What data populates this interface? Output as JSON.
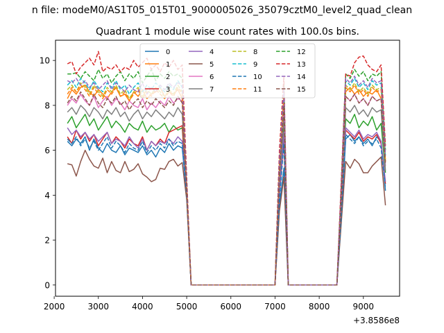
{
  "chart_data": {
    "type": "line",
    "suptitle": "n file: modeM0/AS1T05_015T01_9000005026_35079cztM0_level2_quad_clean",
    "title": "Quadrant 1 module wise count rates with 100.0s bins.",
    "xlabel": "",
    "ylabel": "",
    "x_offset_label": "+3.8586e8",
    "xlim": [
      2030,
      9820
    ],
    "ylim": [
      -0.5,
      10.9
    ],
    "xticks": [
      2000,
      3000,
      4000,
      5000,
      6000,
      7000,
      8000,
      9000
    ],
    "yticks": [
      0,
      2,
      4,
      6,
      8,
      10
    ],
    "x": [
      2300,
      2400,
      2500,
      2600,
      2700,
      2800,
      2900,
      3000,
      3100,
      3200,
      3300,
      3400,
      3500,
      3600,
      3700,
      3800,
      3900,
      4000,
      4100,
      4200,
      4300,
      4400,
      4500,
      4600,
      4700,
      4800,
      4900,
      5000,
      5100,
      5200,
      5300,
      5400,
      5500,
      5600,
      5700,
      5800,
      5900,
      6000,
      6100,
      6200,
      6300,
      6400,
      6500,
      6600,
      6700,
      6800,
      6900,
      7000,
      7100,
      7200,
      7300,
      7400,
      7500,
      7600,
      7700,
      7800,
      7900,
      8000,
      8100,
      8200,
      8300,
      8400,
      8500,
      8600,
      8700,
      8800,
      8900,
      9000,
      9100,
      9200,
      9300,
      9400,
      9500
    ],
    "series": [
      {
        "name": "0",
        "color": "#1f77b4",
        "dash": "solid",
        "values": [
          6.4,
          6.2,
          6.5,
          6.3,
          6.6,
          6.0,
          6.5,
          6.1,
          5.9,
          6.3,
          6.0,
          5.9,
          6.2,
          5.8,
          6.1,
          6.0,
          5.9,
          6.2,
          5.8,
          6.0,
          5.7,
          6.1,
          5.9,
          6.3,
          6.0,
          6.2,
          6.1,
          4.0,
          0,
          0,
          0,
          0,
          0,
          0,
          0,
          0,
          0,
          0,
          0,
          0,
          0,
          0,
          0,
          0,
          0,
          0,
          0,
          0,
          3.5,
          5.2,
          0,
          0,
          0,
          0,
          0,
          0,
          0,
          0,
          0,
          0,
          0,
          0,
          3.0,
          6.5,
          6.7,
          6.4,
          6.6,
          6.3,
          6.5,
          6.2,
          6.6,
          6.4,
          4.2
        ]
      },
      {
        "name": "1",
        "color": "#ff7f0e",
        "dash": "solid",
        "values": [
          8.3,
          8.7,
          8.5,
          8.8,
          8.9,
          8.6,
          8.4,
          8.7,
          8.5,
          8.3,
          8.6,
          8.8,
          8.4,
          8.5,
          8.2,
          8.6,
          8.4,
          8.7,
          8.3,
          8.5,
          8.6,
          8.8,
          8.4,
          8.6,
          8.5,
          8.7,
          8.3,
          4.3,
          0,
          0,
          0,
          0,
          0,
          0,
          0,
          0,
          0,
          0,
          0,
          0,
          0,
          0,
          0,
          0,
          0,
          0,
          0,
          0,
          5.0,
          8.0,
          0,
          0,
          0,
          0,
          0,
          0,
          0,
          0,
          0,
          0,
          0,
          0,
          4.0,
          8.6,
          8.8,
          8.5,
          8.7,
          8.4,
          8.6,
          8.5,
          8.7,
          8.3,
          5.5
        ]
      },
      {
        "name": "2",
        "color": "#2ca02c",
        "dash": "solid",
        "values": [
          7.2,
          7.5,
          7.0,
          7.3,
          7.6,
          7.1,
          7.4,
          6.9,
          7.2,
          7.5,
          7.0,
          7.3,
          7.1,
          6.8,
          7.2,
          7.0,
          6.9,
          7.3,
          6.8,
          7.1,
          6.9,
          7.0,
          7.2,
          6.8,
          7.1,
          6.9,
          7.0,
          4.1,
          0,
          0,
          0,
          0,
          0,
          0,
          0,
          0,
          0,
          0,
          0,
          0,
          0,
          0,
          0,
          0,
          0,
          0,
          0,
          0,
          4.5,
          7.0,
          0,
          0,
          0,
          0,
          0,
          0,
          0,
          0,
          0,
          0,
          0,
          0,
          3.5,
          7.4,
          7.2,
          7.6,
          7.0,
          7.3,
          7.1,
          7.5,
          6.9,
          7.2,
          5.0
        ]
      },
      {
        "name": "3",
        "color": "#d62728",
        "dash": "solid",
        "values": [
          6.6,
          6.3,
          6.9,
          6.5,
          6.8,
          6.4,
          6.7,
          6.2,
          6.5,
          6.8,
          6.3,
          6.6,
          6.4,
          6.1,
          6.5,
          6.3,
          6.2,
          6.6,
          6.0,
          6.4,
          6.2,
          6.5,
          6.3,
          6.8,
          6.9,
          7.0,
          7.1,
          4.2,
          0,
          0,
          0,
          0,
          0,
          0,
          0,
          0,
          0,
          0,
          0,
          0,
          0,
          0,
          0,
          0,
          0,
          0,
          0,
          0,
          4.0,
          6.5,
          0,
          0,
          0,
          0,
          0,
          0,
          0,
          0,
          0,
          0,
          0,
          0,
          3.2,
          6.9,
          6.7,
          6.5,
          6.8,
          6.4,
          6.6,
          6.5,
          6.7,
          6.3,
          4.5
        ]
      },
      {
        "name": "4",
        "color": "#9467bd",
        "dash": "solid",
        "values": [
          7.0,
          6.7,
          6.9,
          6.6,
          6.8,
          6.5,
          6.7,
          6.4,
          6.6,
          6.8,
          6.3,
          6.5,
          6.4,
          6.2,
          6.6,
          6.3,
          6.1,
          6.5,
          6.0,
          6.4,
          6.2,
          6.4,
          6.3,
          6.5,
          6.3,
          6.6,
          6.4,
          4.1,
          0,
          0,
          0,
          0,
          0,
          0,
          0,
          0,
          0,
          0,
          0,
          0,
          0,
          0,
          0,
          0,
          0,
          0,
          0,
          0,
          4.2,
          6.8,
          0,
          0,
          0,
          0,
          0,
          0,
          0,
          0,
          0,
          0,
          0,
          0,
          3.3,
          7.0,
          6.8,
          6.6,
          6.9,
          6.5,
          6.7,
          6.6,
          6.8,
          6.4,
          4.6
        ]
      },
      {
        "name": "5",
        "color": "#8c564b",
        "dash": "solid",
        "values": [
          5.4,
          5.35,
          4.85,
          5.5,
          6.0,
          5.6,
          5.3,
          5.2,
          5.65,
          5.0,
          5.5,
          5.1,
          5.0,
          5.5,
          5.05,
          5.15,
          5.4,
          4.95,
          4.8,
          4.6,
          4.7,
          5.2,
          5.15,
          5.5,
          5.6,
          5.3,
          5.45,
          3.8,
          0,
          0,
          0,
          0,
          0,
          0,
          0,
          0,
          0,
          0,
          0,
          0,
          0,
          0,
          0,
          0,
          0,
          0,
          0,
          0,
          3.3,
          4.8,
          0,
          0,
          0,
          0,
          0,
          0,
          0,
          0,
          0,
          0,
          0,
          0,
          2.8,
          5.5,
          5.2,
          5.6,
          5.4,
          5.0,
          5.0,
          5.3,
          5.5,
          5.7,
          3.55
        ]
      },
      {
        "name": "6",
        "color": "#e377c2",
        "dash": "solid",
        "values": [
          8.0,
          8.3,
          8.1,
          8.5,
          8.2,
          8.0,
          8.4,
          7.9,
          8.2,
          8.4,
          8.0,
          8.3,
          8.1,
          7.8,
          8.2,
          8.0,
          7.9,
          8.3,
          7.8,
          8.1,
          7.9,
          8.2,
          8.0,
          8.4,
          8.1,
          8.3,
          8.2,
          4.3,
          0,
          0,
          0,
          0,
          0,
          0,
          0,
          0,
          0,
          0,
          0,
          0,
          0,
          0,
          0,
          0,
          0,
          0,
          0,
          0,
          5.0,
          7.8,
          0,
          0,
          0,
          0,
          0,
          0,
          0,
          0,
          0,
          0,
          0,
          0,
          3.8,
          8.4,
          8.2,
          8.5,
          8.1,
          8.3,
          8.0,
          8.4,
          8.2,
          8.3,
          5.3
        ]
      },
      {
        "name": "7",
        "color": "#7f7f7f",
        "dash": "solid",
        "values": [
          7.7,
          7.9,
          7.6,
          8.0,
          7.8,
          7.5,
          7.9,
          7.7,
          7.4,
          7.8,
          7.6,
          7.9,
          7.5,
          7.7,
          7.3,
          7.6,
          7.8,
          7.4,
          7.7,
          7.5,
          7.8,
          7.6,
          7.4,
          7.7,
          7.5,
          7.9,
          7.6,
          4.2,
          0,
          0,
          0,
          0,
          0,
          0,
          0,
          0,
          0,
          0,
          0,
          0,
          0,
          0,
          0,
          0,
          0,
          0,
          0,
          0,
          4.8,
          7.5,
          0,
          0,
          0,
          0,
          0,
          0,
          0,
          0,
          0,
          0,
          0,
          0,
          3.6,
          7.9,
          7.7,
          8.0,
          7.6,
          7.8,
          7.5,
          7.9,
          7.7,
          7.8,
          5.1
        ]
      },
      {
        "name": "8",
        "color": "#bcbd22",
        "dash": "dash",
        "values": [
          8.7,
          8.9,
          8.6,
          9.0,
          8.8,
          8.5,
          8.9,
          8.6,
          8.4,
          8.8,
          8.6,
          8.9,
          8.5,
          8.7,
          8.3,
          8.6,
          8.8,
          8.4,
          8.7,
          8.5,
          8.8,
          8.6,
          8.4,
          8.7,
          8.5,
          8.9,
          8.6,
          4.4,
          0,
          0,
          0,
          0,
          0,
          0,
          0,
          0,
          0,
          0,
          0,
          0,
          0,
          0,
          0,
          0,
          0,
          0,
          0,
          0,
          5.3,
          8.5,
          0,
          0,
          0,
          0,
          0,
          0,
          0,
          0,
          0,
          0,
          0,
          0,
          4.1,
          8.9,
          8.7,
          9.0,
          8.6,
          8.8,
          8.5,
          8.9,
          8.7,
          8.8,
          5.6
        ]
      },
      {
        "name": "9",
        "color": "#17becf",
        "dash": "dash",
        "values": [
          8.9,
          9.1,
          8.8,
          9.2,
          9.0,
          8.7,
          9.1,
          8.8,
          8.6,
          9.0,
          8.8,
          9.1,
          8.7,
          8.9,
          8.5,
          8.8,
          9.0,
          8.6,
          8.9,
          8.7,
          9.0,
          8.8,
          8.6,
          8.9,
          8.7,
          9.1,
          8.8,
          4.4,
          0,
          0,
          0,
          0,
          0,
          0,
          0,
          0,
          0,
          0,
          0,
          0,
          0,
          0,
          0,
          0,
          0,
          0,
          0,
          0,
          5.4,
          8.7,
          0,
          0,
          0,
          0,
          0,
          0,
          0,
          0,
          0,
          0,
          0,
          0,
          4.2,
          9.1,
          8.9,
          9.2,
          8.8,
          9.0,
          8.7,
          9.1,
          8.9,
          9.0,
          5.7
        ]
      },
      {
        "name": "10",
        "color": "#1f77b4",
        "dash": "dash",
        "values": [
          6.5,
          6.3,
          6.6,
          6.2,
          6.5,
          6.1,
          6.4,
          6.0,
          6.3,
          6.6,
          6.1,
          6.4,
          6.2,
          5.9,
          6.3,
          6.1,
          6.0,
          6.4,
          5.9,
          6.2,
          6.0,
          6.3,
          6.1,
          6.5,
          6.2,
          6.4,
          6.3,
          4.0,
          0,
          0,
          0,
          0,
          0,
          0,
          0,
          0,
          0,
          0,
          0,
          0,
          0,
          0,
          0,
          0,
          0,
          0,
          0,
          0,
          3.8,
          6.3,
          0,
          0,
          0,
          0,
          0,
          0,
          0,
          0,
          0,
          0,
          0,
          0,
          3.1,
          6.7,
          6.5,
          6.3,
          6.6,
          6.2,
          6.4,
          6.3,
          6.5,
          6.1,
          4.3
        ]
      },
      {
        "name": "11",
        "color": "#ff7f0e",
        "dash": "dash",
        "values": [
          8.5,
          8.8,
          8.6,
          8.9,
          8.7,
          8.4,
          8.8,
          8.5,
          8.3,
          8.7,
          8.5,
          8.8,
          8.4,
          8.6,
          8.2,
          8.5,
          8.7,
          8.3,
          8.6,
          8.4,
          8.7,
          8.5,
          8.3,
          8.6,
          8.4,
          8.8,
          8.5,
          4.3,
          0,
          0,
          0,
          0,
          0,
          0,
          0,
          0,
          0,
          0,
          0,
          0,
          0,
          0,
          0,
          0,
          0,
          0,
          0,
          0,
          5.2,
          8.4,
          0,
          0,
          0,
          0,
          0,
          0,
          0,
          0,
          0,
          0,
          0,
          0,
          4.0,
          8.8,
          8.6,
          8.9,
          8.5,
          8.7,
          8.4,
          8.8,
          8.6,
          8.7,
          5.5
        ]
      },
      {
        "name": "12",
        "color": "#2ca02c",
        "dash": "dash",
        "values": [
          9.4,
          9.4,
          9.45,
          9.2,
          9.5,
          9.3,
          9.1,
          9.6,
          9.2,
          9.4,
          9.0,
          9.3,
          9.5,
          9.1,
          9.4,
          9.2,
          9.5,
          9.0,
          9.3,
          9.6,
          9.1,
          9.4,
          9.2,
          9.5,
          9.3,
          9.4,
          9.2,
          4.6,
          0,
          0,
          0,
          0,
          0,
          0,
          0,
          0,
          0,
          0,
          0,
          0,
          0,
          0,
          0,
          0,
          0,
          0,
          0,
          0,
          5.8,
          9.0,
          0,
          0,
          0,
          0,
          0,
          0,
          0,
          0,
          0,
          0,
          0,
          0,
          4.5,
          9.4,
          9.2,
          9.6,
          9.3,
          9.5,
          9.1,
          9.4,
          9.3,
          9.5,
          6.0
        ]
      },
      {
        "name": "13",
        "color": "#d62728",
        "dash": "dash",
        "values": [
          9.85,
          9.95,
          9.4,
          9.7,
          9.9,
          10.1,
          9.8,
          10.4,
          9.5,
          9.7,
          9.6,
          9.8,
          9.5,
          9.7,
          9.6,
          10.0,
          9.7,
          9.9,
          10.1,
          9.6,
          9.8,
          9.5,
          9.9,
          9.7,
          10.0,
          9.6,
          9.8,
          4.8,
          0,
          0,
          0,
          0,
          0,
          0,
          0,
          0,
          0,
          0,
          0,
          0,
          0,
          0,
          0,
          0,
          0,
          0,
          0,
          0,
          6.0,
          9.3,
          0,
          0,
          0,
          0,
          0,
          0,
          0,
          0,
          0,
          0,
          0,
          0,
          4.7,
          9.4,
          9.3,
          9.9,
          10.15,
          10.2,
          9.8,
          9.6,
          9.5,
          9.8,
          6.2
        ]
      },
      {
        "name": "14",
        "color": "#9467bd",
        "dash": "dash",
        "values": [
          9.1,
          9.0,
          9.2,
          8.9,
          9.1,
          8.8,
          9.0,
          8.7,
          8.9,
          9.1,
          8.7,
          9.0,
          8.8,
          8.6,
          8.9,
          8.7,
          8.6,
          9.0,
          8.5,
          8.8,
          8.6,
          8.9,
          8.7,
          9.0,
          8.8,
          9.0,
          8.9,
          4.5,
          0,
          0,
          0,
          0,
          0,
          0,
          0,
          0,
          0,
          0,
          0,
          0,
          0,
          0,
          0,
          0,
          0,
          0,
          0,
          0,
          5.5,
          8.8,
          0,
          0,
          0,
          0,
          0,
          0,
          0,
          0,
          0,
          0,
          0,
          0,
          4.3,
          9.2,
          9.0,
          9.3,
          8.9,
          9.1,
          8.8,
          9.2,
          9.0,
          9.1,
          5.8
        ]
      },
      {
        "name": "15",
        "color": "#8c564b",
        "dash": "dash",
        "values": [
          8.1,
          8.4,
          8.2,
          8.6,
          8.3,
          8.0,
          8.5,
          8.1,
          7.9,
          8.3,
          8.1,
          8.4,
          8.0,
          8.2,
          7.8,
          8.1,
          8.3,
          7.9,
          8.2,
          8.0,
          8.3,
          8.1,
          7.9,
          8.2,
          8.0,
          8.4,
          8.1,
          4.3,
          0,
          0,
          0,
          0,
          0,
          0,
          0,
          0,
          0,
          0,
          0,
          0,
          0,
          0,
          0,
          0,
          0,
          0,
          0,
          0,
          5.0,
          8.0,
          0,
          0,
          0,
          0,
          0,
          0,
          0,
          0,
          0,
          0,
          0,
          0,
          3.9,
          8.4,
          8.2,
          8.5,
          8.1,
          8.3,
          8.0,
          8.4,
          8.2,
          8.3,
          5.4
        ]
      }
    ],
    "legend": {
      "placement": "upper-center",
      "ncol": 4
    }
  }
}
